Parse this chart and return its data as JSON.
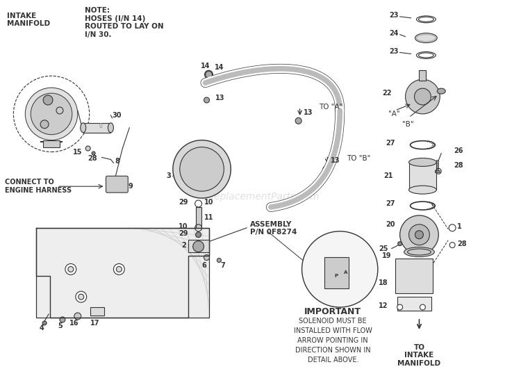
{
  "bg_color": "#ffffff",
  "title": "",
  "figsize": [
    7.5,
    5.41
  ],
  "dpi": 100,
  "note_text": "NOTE:\nHOSES (I/N 14)\nROUTED TO LAY ON\nI/N 30.",
  "intake_manifold_label": "INTAKE\nMANIFOLD",
  "connect_label": "CONNECT TO\nENGINE HARNESS",
  "assembly_label": "ASSEMBLY\nP/N 0F8274",
  "important_title": "IMPORTANT",
  "important_body": "SOLENOID MUST BE\nINSTALLED WITH FLOW\nARROW POINTING IN\nDIRECTION SHOWN IN\nDETAIL ABOVE.",
  "to_intake_manifold_label": "TO\nINTAKE\nMANIFOLD",
  "to_a_label": "TO \"A\"",
  "to_b_label": "TO \"B\"",
  "watermark": "eReplacementParts.com"
}
